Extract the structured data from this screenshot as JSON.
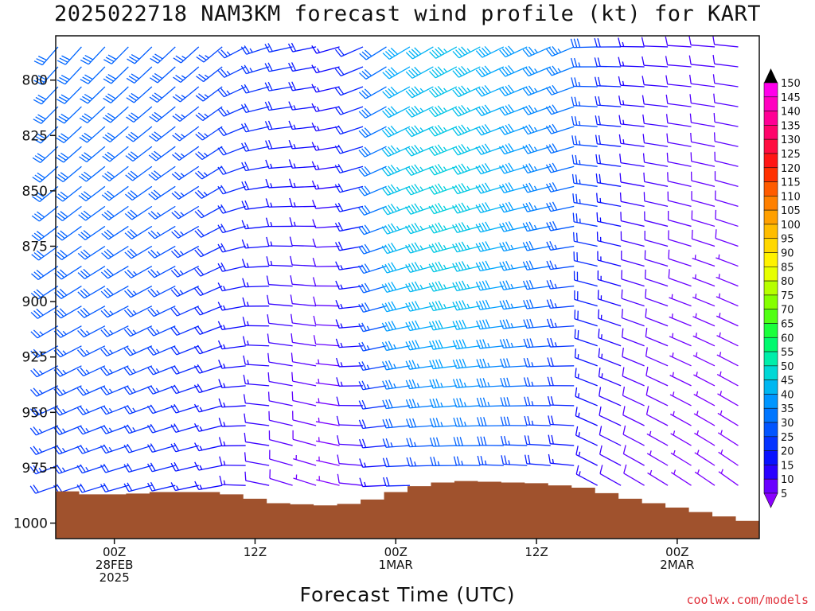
{
  "title": "2025022718 NAM3KM forecast wind profile (kt) for KART",
  "xlabel": "Forecast Time (UTC)",
  "credit": "coolwx.com/models",
  "chart_data": {
    "type": "wind-barb-profile",
    "y_axis": {
      "quantity": "pressure (mb)",
      "ticks": [
        800,
        825,
        850,
        875,
        900,
        925,
        950,
        975,
        1000
      ],
      "range": [
        780,
        1007
      ],
      "inverted": true
    },
    "x_axis": {
      "range_hours": [
        -5,
        55
      ],
      "ticks": [
        {
          "hour": 0,
          "lines": [
            "00Z",
            "28FEB",
            "2025"
          ]
        },
        {
          "hour": 12,
          "lines": [
            "12Z"
          ]
        },
        {
          "hour": 24,
          "lines": [
            "00Z",
            "1MAR"
          ]
        },
        {
          "hour": 36,
          "lines": [
            "12Z"
          ]
        },
        {
          "hour": 48,
          "lines": [
            "00Z",
            "2MAR"
          ]
        }
      ]
    },
    "time_step_hours": 2,
    "pressure_levels": [
      785,
      794,
      803,
      812,
      821,
      830,
      839,
      848,
      857,
      866,
      875,
      884,
      893,
      902,
      911,
      920,
      929,
      938,
      947,
      956,
      965,
      974,
      983
    ],
    "surface_pressure": [
      {
        "hour": -5,
        "p": 985
      },
      {
        "hour": -2,
        "p": 987
      },
      {
        "hour": 1,
        "p": 987
      },
      {
        "hour": 4,
        "p": 986
      },
      {
        "hour": 9,
        "p": 986
      },
      {
        "hour": 14,
        "p": 991
      },
      {
        "hour": 18,
        "p": 992
      },
      {
        "hour": 21,
        "p": 991
      },
      {
        "hour": 24,
        "p": 986
      },
      {
        "hour": 27,
        "p": 982
      },
      {
        "hour": 30,
        "p": 981
      },
      {
        "hour": 36,
        "p": 982
      },
      {
        "hour": 40,
        "p": 984
      },
      {
        "hour": 44,
        "p": 989
      },
      {
        "hour": 48,
        "p": 993
      },
      {
        "hour": 52,
        "p": 997
      },
      {
        "hour": 55,
        "p": 1000
      }
    ],
    "wind_direction_model": {
      "base_deg": 238,
      "rotate_deg_per_hour": 0.6
    },
    "wind_speed_kt_grid": {
      "hours": [
        -5,
        0,
        5,
        10,
        15,
        20,
        25,
        30,
        35,
        40,
        45,
        50,
        55
      ],
      "pressures": [
        790,
        850,
        900,
        950,
        985
      ],
      "values": [
        [
          30,
          30,
          28,
          25,
          22,
          14,
          40,
          44,
          38,
          32,
          14,
          10,
          10
        ],
        [
          30,
          30,
          28,
          22,
          16,
          12,
          44,
          47,
          40,
          28,
          12,
          8,
          8
        ],
        [
          28,
          28,
          26,
          18,
          12,
          8,
          40,
          45,
          36,
          22,
          10,
          7,
          7
        ],
        [
          25,
          25,
          22,
          16,
          10,
          6,
          30,
          36,
          30,
          18,
          9,
          6,
          6
        ],
        [
          22,
          22,
          20,
          14,
          8,
          5,
          18,
          24,
          20,
          14,
          8,
          6,
          6
        ]
      ]
    },
    "colorbar": {
      "min_kt": 5,
      "max_kt": 150,
      "step_kt": 5,
      "labels": [
        "150",
        "145",
        "140",
        "135",
        "130",
        "125",
        "120",
        "115",
        "110",
        "105",
        "100",
        "95",
        "90",
        "85",
        "80",
        "75",
        "70",
        "65",
        "60",
        "55",
        "50",
        "45",
        "40",
        "35",
        "30",
        "25",
        "20",
        "15",
        "10",
        "5"
      ],
      "color_stops": [
        {
          "kt": 5,
          "color": "#8a00ff"
        },
        {
          "kt": 15,
          "color": "#0a00ff"
        },
        {
          "kt": 30,
          "color": "#0066ff"
        },
        {
          "kt": 40,
          "color": "#00a6ff"
        },
        {
          "kt": 50,
          "color": "#00e8c8"
        },
        {
          "kt": 60,
          "color": "#00ff50"
        },
        {
          "kt": 70,
          "color": "#6cff00"
        },
        {
          "kt": 85,
          "color": "#ffff00"
        },
        {
          "kt": 100,
          "color": "#ffb000"
        },
        {
          "kt": 110,
          "color": "#ff7000"
        },
        {
          "kt": 120,
          "color": "#ff1a00"
        },
        {
          "kt": 135,
          "color": "#ff0080"
        },
        {
          "kt": 150,
          "color": "#ff00ff"
        }
      ]
    },
    "terrain_color": "#a0522d"
  }
}
